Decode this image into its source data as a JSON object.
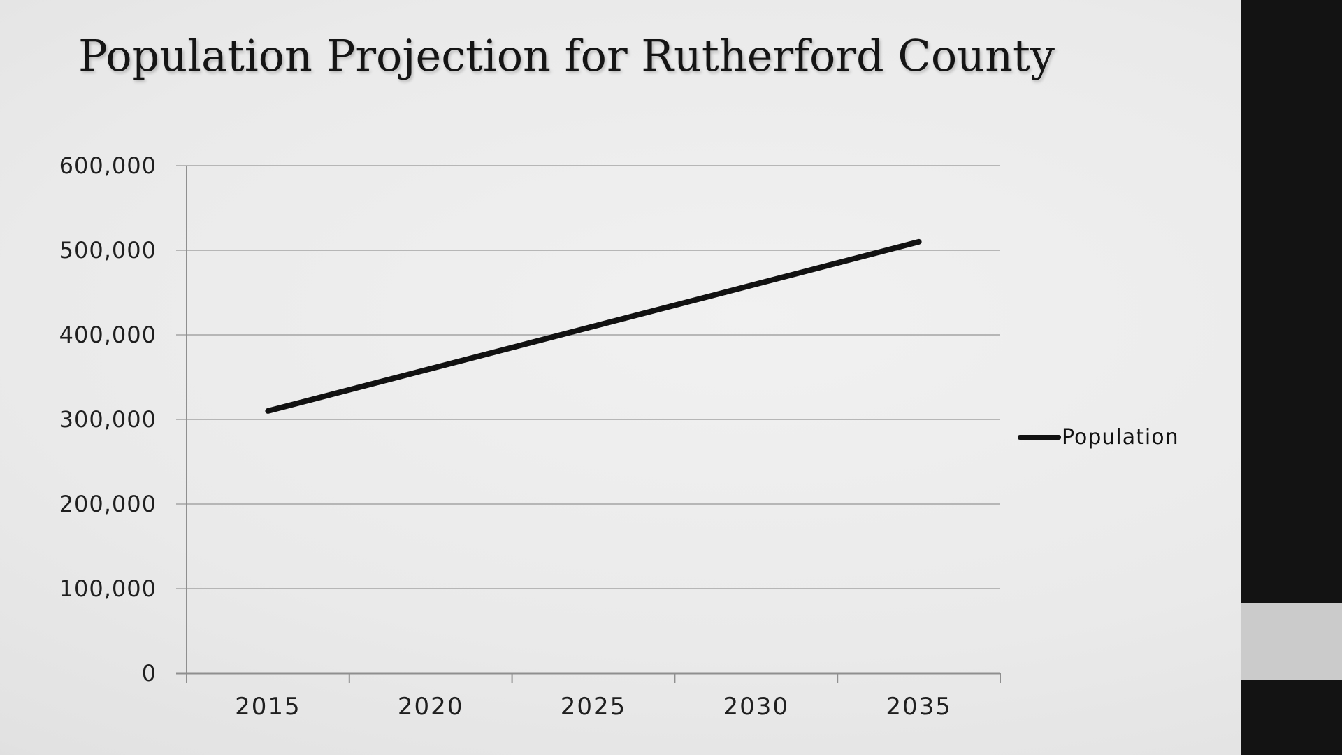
{
  "slide": {
    "title": "Population Projection for Rutherford County"
  },
  "chart_data": {
    "type": "line",
    "title": "Population Projection for Rutherford County",
    "categories": [
      "2015",
      "2020",
      "2025",
      "2030",
      "2035"
    ],
    "series": [
      {
        "name": "Population",
        "values": [
          310000,
          360000,
          410000,
          460000,
          510000
        ]
      }
    ],
    "xlabel": "",
    "ylabel": "",
    "ylim": [
      0,
      600000
    ],
    "yticks": [
      0,
      100000,
      200000,
      300000,
      400000,
      500000,
      600000
    ],
    "ytick_labels": [
      "0",
      "100,000",
      "200,000",
      "300,000",
      "400,000",
      "500,000",
      "600,000"
    ],
    "grid": true,
    "legend": {
      "position": "right",
      "entries": [
        "Population"
      ]
    }
  },
  "colors": {
    "series_line": "#111111",
    "gridline": "#a4a4a4",
    "axis": "#8f8f8f",
    "label_text": "#1f1f1f",
    "title_text": "#151515",
    "sidebar_black": "#131313",
    "sidebar_gray_block": "#cbcbcb"
  }
}
